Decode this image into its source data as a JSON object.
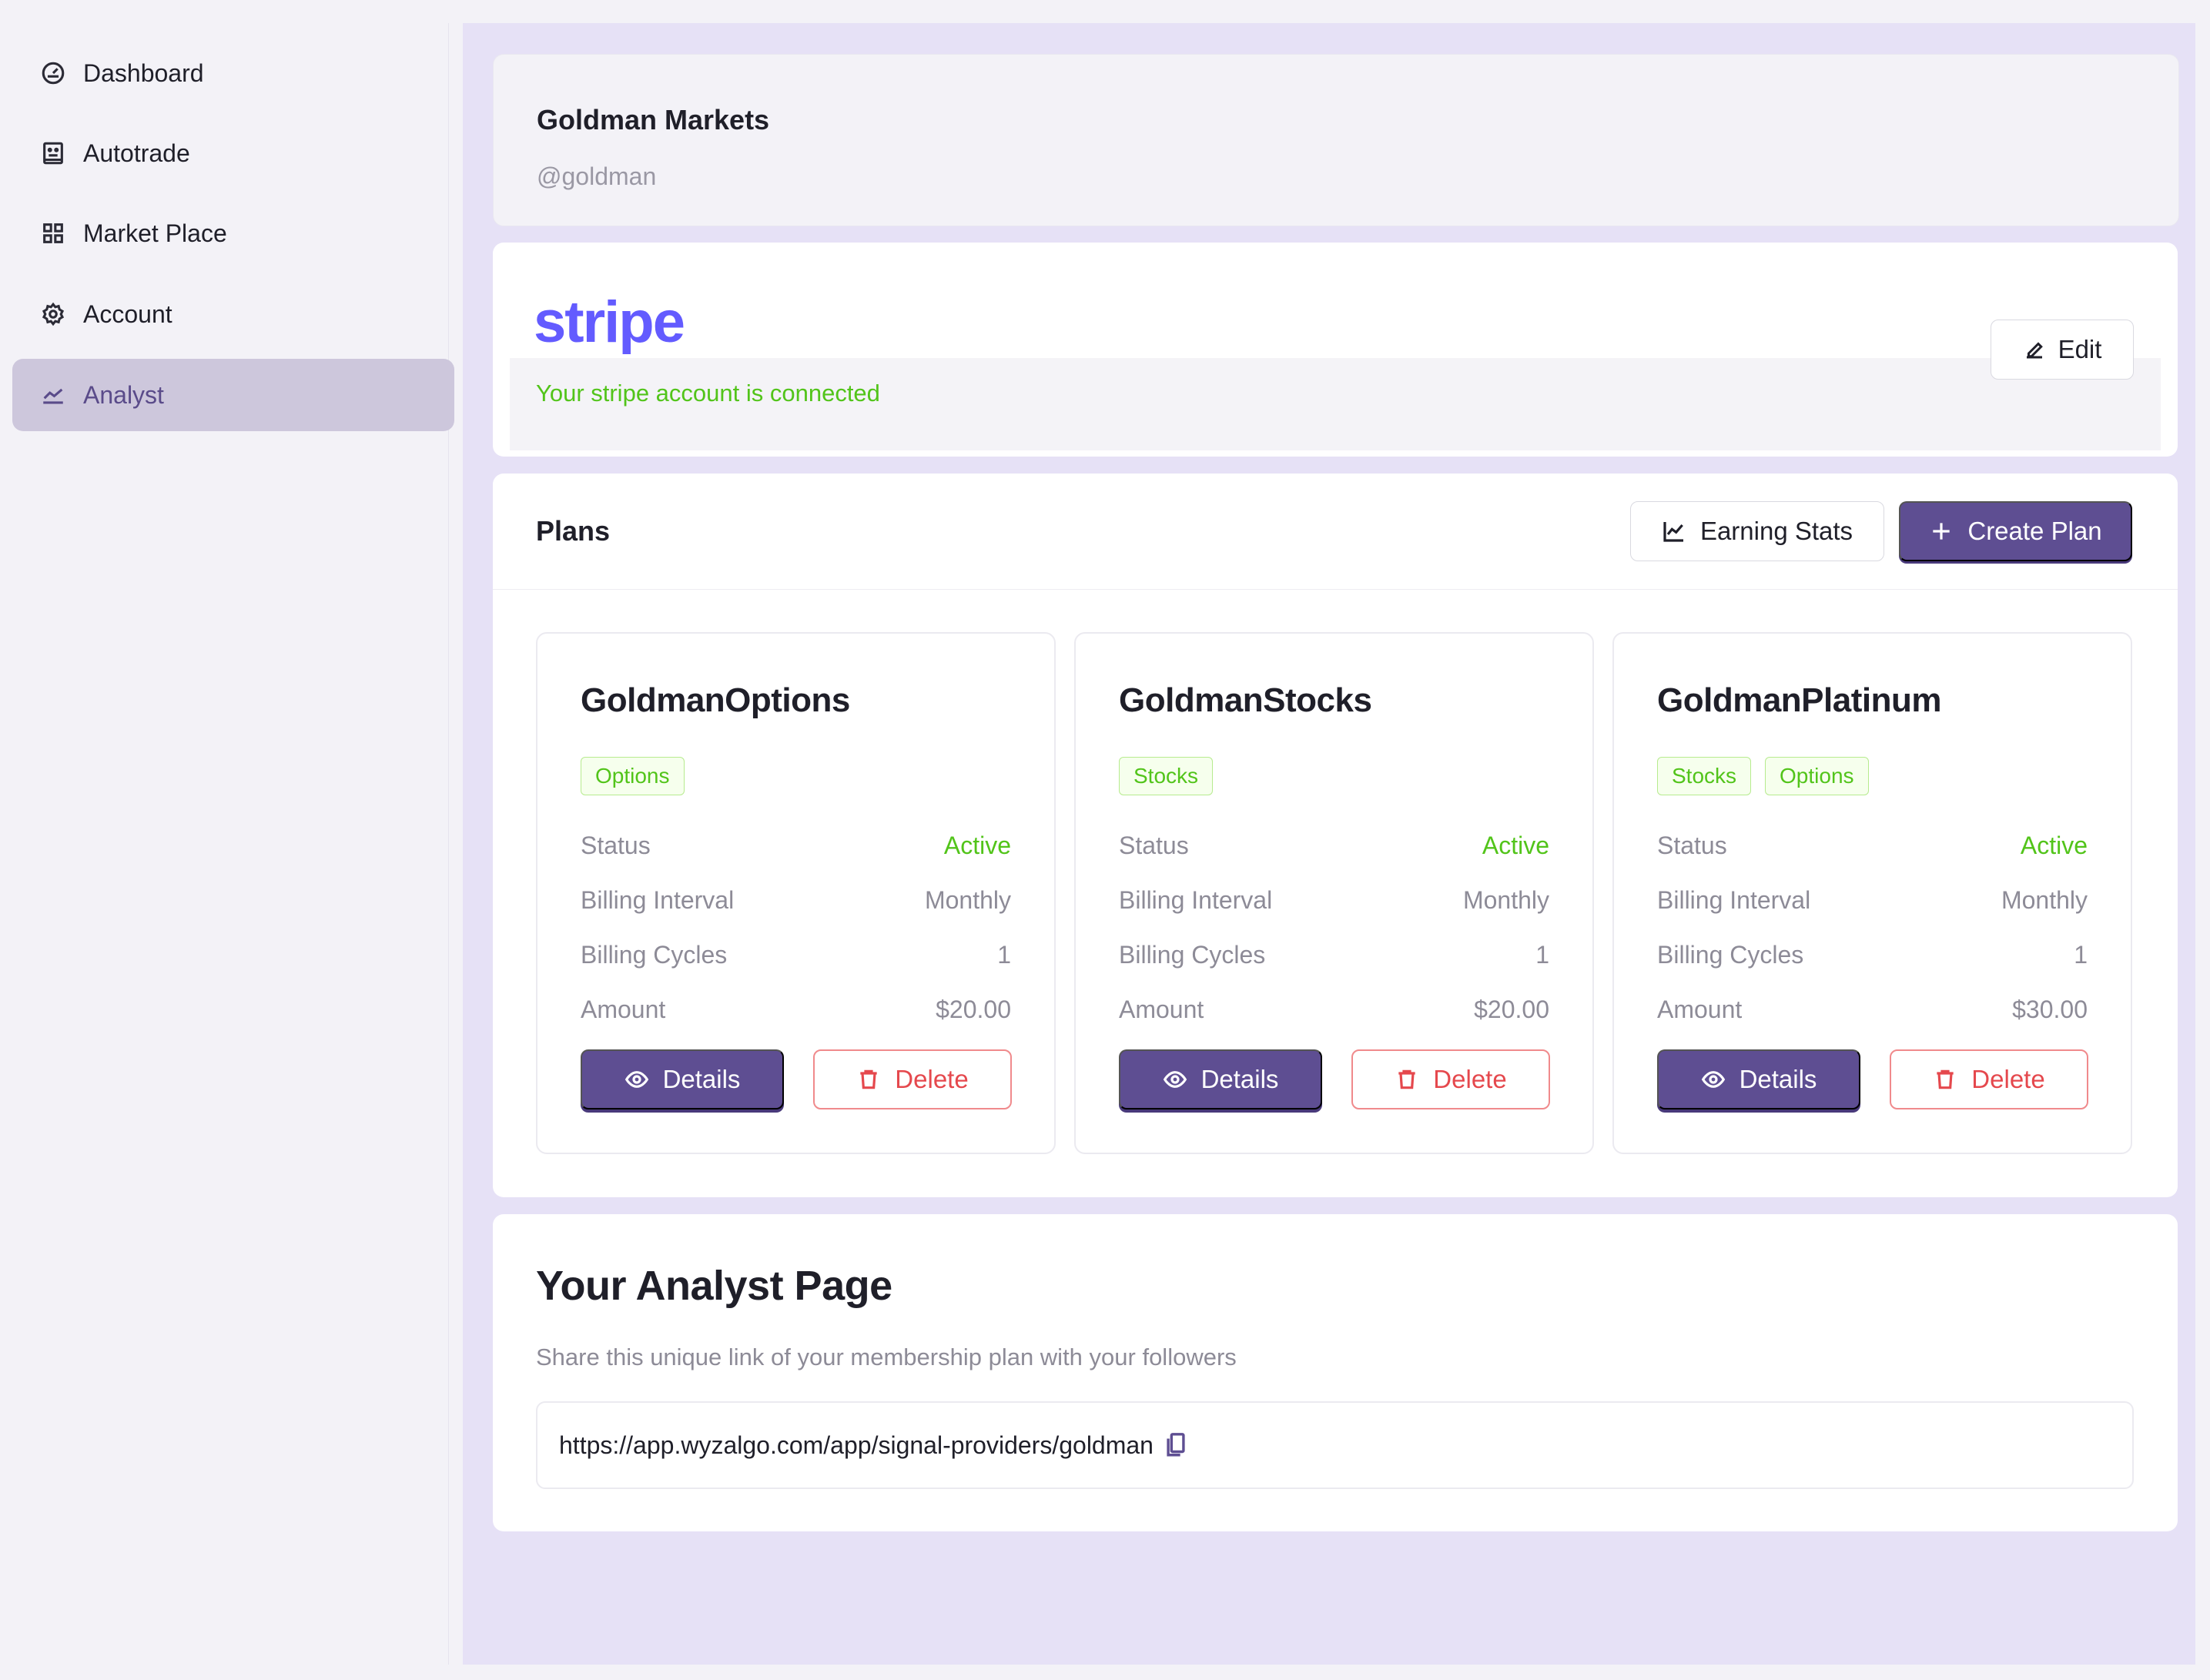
{
  "sidebar": {
    "items": [
      {
        "label": "Dashboard",
        "icon": "dashboard-gauge-icon"
      },
      {
        "label": "Autotrade",
        "icon": "robot-icon"
      },
      {
        "label": "Market Place",
        "icon": "grid-icon"
      },
      {
        "label": "Account",
        "icon": "gear-icon"
      },
      {
        "label": "Analyst",
        "icon": "line-chart-icon",
        "active": true
      }
    ]
  },
  "profile": {
    "name": "Goldman Markets",
    "handle": "@goldman"
  },
  "stripe": {
    "logo": "stripe",
    "status": "Your stripe account is connected",
    "edit_label": "Edit"
  },
  "plans": {
    "title": "Plans",
    "earning_stats_label": "Earning Stats",
    "create_plan_label": "Create Plan",
    "row_labels": {
      "status": "Status",
      "interval": "Billing Interval",
      "cycles": "Billing Cycles",
      "amount": "Amount"
    },
    "details_label": "Details",
    "delete_label": "Delete",
    "items": [
      {
        "name": "GoldmanOptions",
        "tags": [
          "Options"
        ],
        "status": "Active",
        "interval": "Monthly",
        "cycles": "1",
        "amount": "$20.00"
      },
      {
        "name": "GoldmanStocks",
        "tags": [
          "Stocks"
        ],
        "status": "Active",
        "interval": "Monthly",
        "cycles": "1",
        "amount": "$20.00"
      },
      {
        "name": "GoldmanPlatinum",
        "tags": [
          "Stocks",
          "Options"
        ],
        "status": "Active",
        "interval": "Monthly",
        "cycles": "1",
        "amount": "$30.00"
      }
    ]
  },
  "analyst_page": {
    "title": "Your Analyst Page",
    "subtitle": "Share this unique link of your membership plan with your followers",
    "link": "https://app.wyzalgo.com/app/signal-providers/goldman"
  },
  "colors": {
    "accent": "#5e4e92",
    "success": "#52c41a",
    "danger": "#e5484d",
    "stripe": "#635bff"
  }
}
